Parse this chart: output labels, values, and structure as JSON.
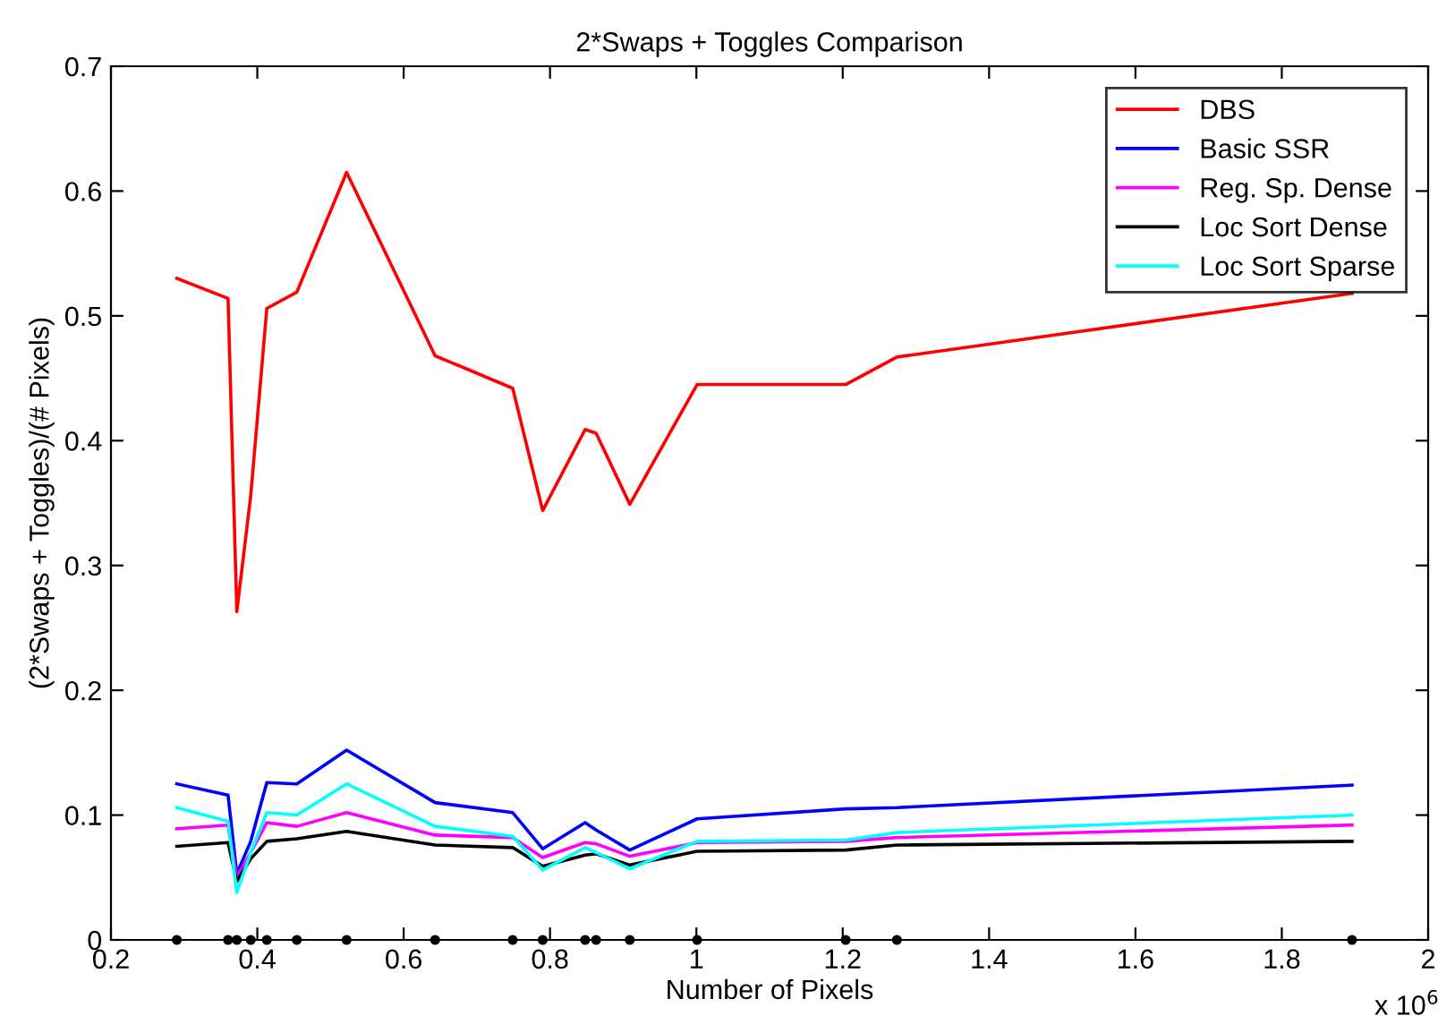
{
  "chart_data": {
    "type": "line",
    "title": "2*Swaps + Toggles Comparison",
    "xlabel": "Number of Pixels",
    "ylabel": "(2*Swaps + Toggles)/(# Pixels)",
    "annotations": [
      "x 10$^{6}$"
    ],
    "x": [
      0.29,
      0.36,
      0.372,
      0.391,
      0.413,
      0.454,
      0.522,
      0.643,
      0.749,
      0.79,
      0.848,
      0.863,
      0.909,
      1.001,
      1.204,
      1.274,
      1.896
    ],
    "series": [
      {
        "name": "DBS",
        "color": "#ff0000",
        "values": [
          0.53,
          0.514,
          0.263,
          0.356,
          0.506,
          0.519,
          0.615,
          0.468,
          0.442,
          0.344,
          0.409,
          0.406,
          0.349,
          0.445,
          0.445,
          0.467,
          0.518
        ]
      },
      {
        "name": "Basic SSR",
        "color": "#0000ff",
        "values": [
          0.125,
          0.116,
          0.053,
          0.079,
          0.126,
          0.125,
          0.152,
          0.11,
          0.102,
          0.073,
          0.094,
          0.088,
          0.072,
          0.097,
          0.105,
          0.106,
          0.124
        ]
      },
      {
        "name": "Reg. Sp. Dense",
        "color": "#ff00ff",
        "values": [
          0.089,
          0.092,
          0.05,
          0.07,
          0.094,
          0.091,
          0.102,
          0.084,
          0.082,
          0.066,
          0.078,
          0.077,
          0.067,
          0.078,
          0.079,
          0.082,
          0.092
        ]
      },
      {
        "name": "Loc Sort Dense",
        "color": "#000000",
        "values": [
          0.075,
          0.078,
          0.047,
          0.065,
          0.079,
          0.081,
          0.087,
          0.076,
          0.074,
          0.059,
          0.068,
          0.069,
          0.06,
          0.071,
          0.072,
          0.076,
          0.079
        ]
      },
      {
        "name": "Loc Sort Sparse",
        "color": "#00ffff",
        "values": [
          0.106,
          0.095,
          0.038,
          0.07,
          0.102,
          0.1,
          0.125,
          0.091,
          0.083,
          0.056,
          0.074,
          0.07,
          0.057,
          0.079,
          0.08,
          0.086,
          0.1
        ]
      },
      {
        "type": "scatter",
        "color": "#000000",
        "marker": "circle",
        "values": [
          0,
          0,
          0,
          0,
          0,
          0,
          0,
          0,
          0,
          0,
          0,
          0,
          0,
          0,
          0,
          0,
          0
        ]
      }
    ],
    "xlim": [
      0.2,
      2
    ],
    "xticks": [
      {
        "value": 0.2,
        "label": "0.2"
      },
      {
        "value": 0.4,
        "label": "0.4"
      },
      {
        "value": 0.6,
        "label": "0.6"
      },
      {
        "value": 0.8,
        "label": "0.8"
      },
      {
        "value": 1,
        "label": "1"
      },
      {
        "value": 1.2,
        "label": "1.2"
      },
      {
        "value": 1.4,
        "label": "1.4"
      },
      {
        "value": 1.6,
        "label": "1.6"
      },
      {
        "value": 1.8,
        "label": "1.8"
      },
      {
        "value": 2,
        "label": "2"
      }
    ],
    "ylim": [
      0,
      0.7
    ],
    "yticks": [
      0,
      0.1,
      0.2,
      0.3,
      0.4,
      0.5,
      0.6,
      0.7
    ],
    "grid": false,
    "legend": "top right",
    "marker": "none",
    "line_style": "solid"
  }
}
